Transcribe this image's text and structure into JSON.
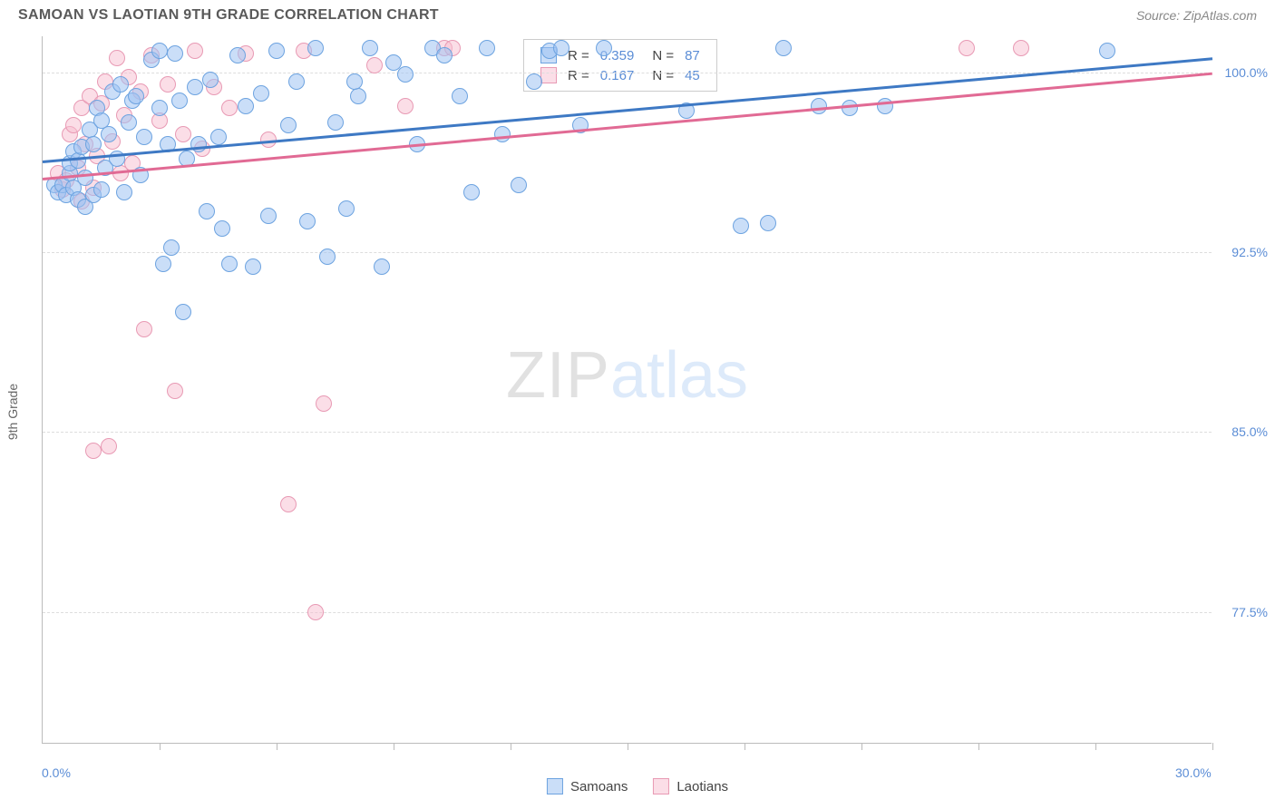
{
  "title": "SAMOAN VS LAOTIAN 9TH GRADE CORRELATION CHART",
  "source": "Source: ZipAtlas.com",
  "y_axis_label": "9th Grade",
  "watermark": {
    "part_a": "ZIP",
    "part_b": "atlas"
  },
  "chart": {
    "type": "scatter",
    "xlim": [
      0,
      30
    ],
    "ylim": [
      72,
      101.5
    ],
    "x_min_label": "0.0%",
    "x_max_label": "30.0%",
    "y_ticks": [
      77.5,
      85.0,
      92.5,
      100.0
    ],
    "y_tick_labels": [
      "77.5%",
      "85.0%",
      "92.5%",
      "100.0%"
    ],
    "x_ticks": [
      3,
      6,
      9,
      12,
      15,
      18,
      21,
      24,
      27,
      30
    ],
    "background_color": "#ffffff",
    "grid_color": "#dddddd",
    "axis_color": "#bbbbbb",
    "tick_label_color": "#5b8dd6",
    "marker_radius": 9,
    "series": [
      {
        "name": "Samoans",
        "fill_color": "rgba(158,195,242,0.55)",
        "stroke_color": "#6da3e0",
        "trend_color": "#3e79c4",
        "R": "0.359",
        "N": "87",
        "trend": {
          "x1": 0,
          "y1": 96.3,
          "x2": 30,
          "y2": 100.6
        },
        "points": [
          [
            0.3,
            95.3
          ],
          [
            0.4,
            95.0
          ],
          [
            0.5,
            95.3
          ],
          [
            0.6,
            94.9
          ],
          [
            0.7,
            95.8
          ],
          [
            0.7,
            96.2
          ],
          [
            0.8,
            95.2
          ],
          [
            0.8,
            96.7
          ],
          [
            0.9,
            96.3
          ],
          [
            0.9,
            94.7
          ],
          [
            1.0,
            96.9
          ],
          [
            1.1,
            95.6
          ],
          [
            1.1,
            94.4
          ],
          [
            1.2,
            97.6
          ],
          [
            1.3,
            97.0
          ],
          [
            1.3,
            94.9
          ],
          [
            1.4,
            98.5
          ],
          [
            1.5,
            98.0
          ],
          [
            1.5,
            95.1
          ],
          [
            1.6,
            96.0
          ],
          [
            1.7,
            97.4
          ],
          [
            1.8,
            99.2
          ],
          [
            1.9,
            96.4
          ],
          [
            2.0,
            99.5
          ],
          [
            2.1,
            95.0
          ],
          [
            2.2,
            97.9
          ],
          [
            2.3,
            98.8
          ],
          [
            2.4,
            99.0
          ],
          [
            2.5,
            95.7
          ],
          [
            2.6,
            97.3
          ],
          [
            2.8,
            100.5
          ],
          [
            3.0,
            98.5
          ],
          [
            3.0,
            100.9
          ],
          [
            3.1,
            92.0
          ],
          [
            3.2,
            97.0
          ],
          [
            3.3,
            92.7
          ],
          [
            3.4,
            100.8
          ],
          [
            3.5,
            98.8
          ],
          [
            3.6,
            90.0
          ],
          [
            3.7,
            96.4
          ],
          [
            3.9,
            99.4
          ],
          [
            4.0,
            97.0
          ],
          [
            4.2,
            94.2
          ],
          [
            4.3,
            99.7
          ],
          [
            4.5,
            97.3
          ],
          [
            4.6,
            93.5
          ],
          [
            4.8,
            92.0
          ],
          [
            5.0,
            100.7
          ],
          [
            5.2,
            98.6
          ],
          [
            5.4,
            91.9
          ],
          [
            5.6,
            99.1
          ],
          [
            5.8,
            94.0
          ],
          [
            6.0,
            100.9
          ],
          [
            6.3,
            97.8
          ],
          [
            6.5,
            99.6
          ],
          [
            6.8,
            93.8
          ],
          [
            7.0,
            101.0
          ],
          [
            7.3,
            92.3
          ],
          [
            7.5,
            97.9
          ],
          [
            7.8,
            94.3
          ],
          [
            8.1,
            99.0
          ],
          [
            8.4,
            101.0
          ],
          [
            8.7,
            91.9
          ],
          [
            9.0,
            100.4
          ],
          [
            9.3,
            99.9
          ],
          [
            9.6,
            97.0
          ],
          [
            10.0,
            101.0
          ],
          [
            10.3,
            100.7
          ],
          [
            10.7,
            99.0
          ],
          [
            11.0,
            95.0
          ],
          [
            11.4,
            101.0
          ],
          [
            11.8,
            97.4
          ],
          [
            12.2,
            95.3
          ],
          [
            12.6,
            99.6
          ],
          [
            13.0,
            100.9
          ],
          [
            13.3,
            101.0
          ],
          [
            13.8,
            97.8
          ],
          [
            14.4,
            101.0
          ],
          [
            16.5,
            98.4
          ],
          [
            17.9,
            93.6
          ],
          [
            18.6,
            93.7
          ],
          [
            19.0,
            101.0
          ],
          [
            19.9,
            98.6
          ],
          [
            20.7,
            98.5
          ],
          [
            21.6,
            98.6
          ],
          [
            27.3,
            100.9
          ],
          [
            8.0,
            99.6
          ]
        ]
      },
      {
        "name": "Laotians",
        "fill_color": "rgba(248,190,208,0.5)",
        "stroke_color": "#e89ab4",
        "trend_color": "#e16a94",
        "R": "0.167",
        "N": "45",
        "trend": {
          "x1": 0,
          "y1": 95.6,
          "x2": 30,
          "y2": 100.0
        },
        "points": [
          [
            0.4,
            95.8
          ],
          [
            0.5,
            95.1
          ],
          [
            0.6,
            95.5
          ],
          [
            0.7,
            97.4
          ],
          [
            0.8,
            97.8
          ],
          [
            0.9,
            96.0
          ],
          [
            1.0,
            98.5
          ],
          [
            1.0,
            94.6
          ],
          [
            1.1,
            97.0
          ],
          [
            1.2,
            99.0
          ],
          [
            1.3,
            84.2
          ],
          [
            1.3,
            95.2
          ],
          [
            1.4,
            96.5
          ],
          [
            1.5,
            98.7
          ],
          [
            1.6,
            99.6
          ],
          [
            1.7,
            84.4
          ],
          [
            1.8,
            97.1
          ],
          [
            1.9,
            100.6
          ],
          [
            2.0,
            95.8
          ],
          [
            2.1,
            98.2
          ],
          [
            2.2,
            99.8
          ],
          [
            2.3,
            96.2
          ],
          [
            2.5,
            99.2
          ],
          [
            2.6,
            89.3
          ],
          [
            2.8,
            100.7
          ],
          [
            3.0,
            98.0
          ],
          [
            3.2,
            99.5
          ],
          [
            3.4,
            86.7
          ],
          [
            3.6,
            97.4
          ],
          [
            3.9,
            100.9
          ],
          [
            4.1,
            96.8
          ],
          [
            4.4,
            99.4
          ],
          [
            4.8,
            98.5
          ],
          [
            5.2,
            100.8
          ],
          [
            5.8,
            97.2
          ],
          [
            6.3,
            82.0
          ],
          [
            6.7,
            100.9
          ],
          [
            7.0,
            77.5
          ],
          [
            7.2,
            86.2
          ],
          [
            8.5,
            100.3
          ],
          [
            9.3,
            98.6
          ],
          [
            10.3,
            101.0
          ],
          [
            10.5,
            101.0
          ],
          [
            23.7,
            101.0
          ],
          [
            25.1,
            101.0
          ]
        ]
      }
    ],
    "stat_legend_labels": {
      "R": "R =",
      "N": "N ="
    },
    "bottom_legend": [
      "Samoans",
      "Laotians"
    ]
  }
}
